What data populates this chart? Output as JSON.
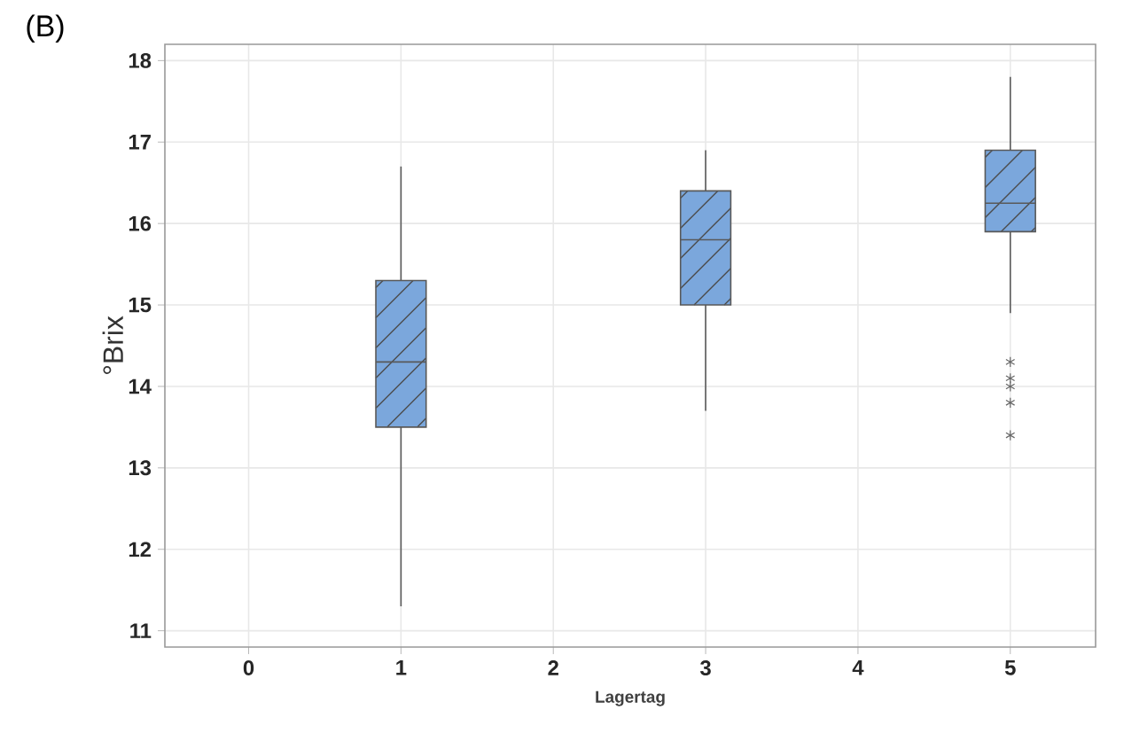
{
  "chart_data": {
    "type": "box",
    "annotations": [
      "(B)"
    ],
    "xlabel": "Lagertag",
    "ylabel": "°Brix",
    "categories": [
      "0",
      "1",
      "2",
      "3",
      "4",
      "5"
    ],
    "color": "#7ba7dc",
    "boxes": [
      null,
      {
        "low": 11.3,
        "q1": 13.5,
        "median": 14.3,
        "q3": 15.3,
        "high": 16.7
      },
      null,
      {
        "low": 13.7,
        "q1": 15.0,
        "median": 15.8,
        "q3": 16.4,
        "high": 16.9
      },
      null,
      {
        "low": 14.9,
        "q1": 15.9,
        "median": 16.25,
        "q3": 16.9,
        "high": 17.8,
        "outliers": [
          14.3,
          14.1,
          14.0,
          13.8,
          13.4
        ]
      }
    ],
    "ylim": [
      10.8,
      18.2
    ],
    "yticks": [
      11,
      12,
      13,
      14,
      15,
      16,
      17,
      18
    ],
    "grid": true
  }
}
